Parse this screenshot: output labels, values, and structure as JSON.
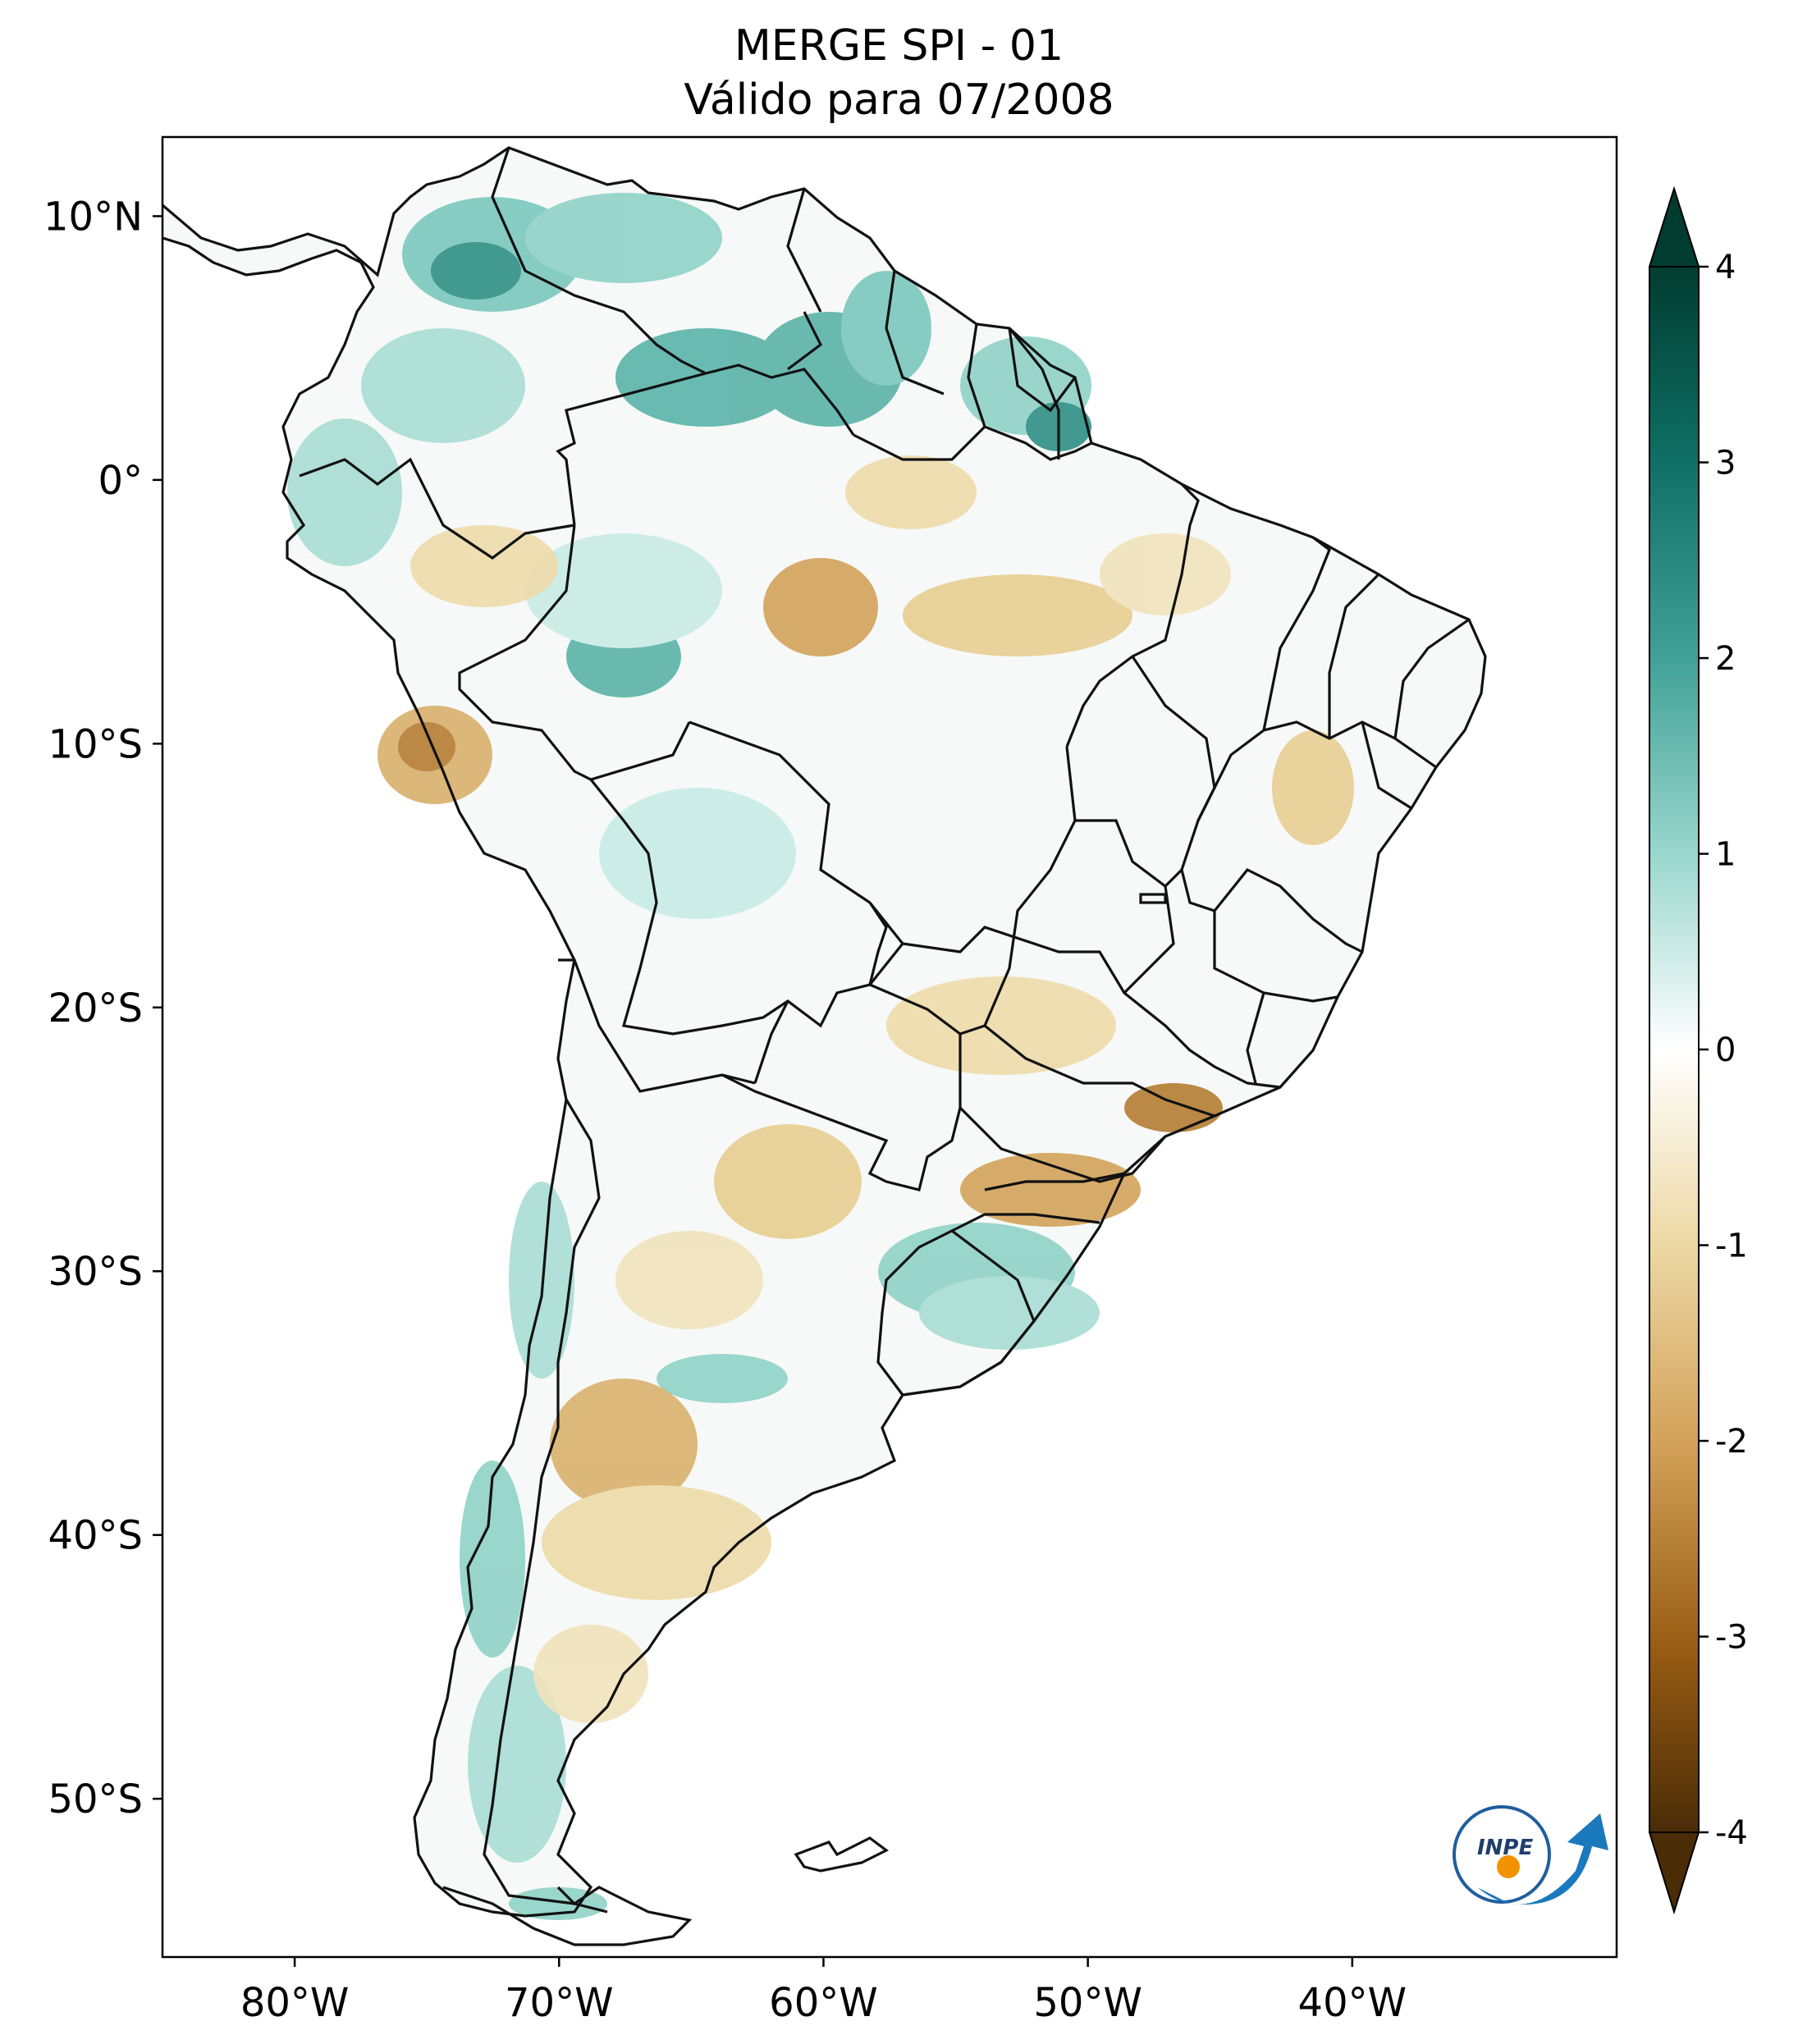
{
  "title": {
    "line1": "MERGE   SPI - 01",
    "line2": "Válido para 07/2008"
  },
  "map": {
    "region": "South America",
    "variable": "SPI - 01",
    "lat_labels": [
      "10°N",
      "0°",
      "10°S",
      "20°S",
      "30°S",
      "40°S",
      "50°S"
    ],
    "lon_labels": [
      "80°W",
      "70°W",
      "60°W",
      "50°W",
      "40°W"
    ],
    "lat_values": [
      10,
      0,
      -10,
      -20,
      -30,
      -40,
      -50
    ],
    "lon_values": [
      -80,
      -70,
      -60,
      -50,
      -40
    ],
    "lon_range": [
      -85,
      -30
    ],
    "lat_range": [
      -56,
      13
    ]
  },
  "colorbar": {
    "colormap": "BrBG",
    "ticks": [
      "4",
      "3",
      "2",
      "1",
      "0",
      "-1",
      "-2",
      "-3",
      "-4"
    ],
    "tick_values": [
      4,
      3,
      2,
      1,
      0,
      -1,
      -2,
      -3,
      -4
    ],
    "range": [
      -4,
      4
    ],
    "extend": "both",
    "colors": {
      "wet_extreme": "#013c30",
      "wet_strong": "#0f6e63",
      "wet_mid": "#41a196",
      "wet_light": "#9dd8cf",
      "neutral": "#ffffff",
      "dry_light": "#eddaa8",
      "dry_mid": "#d3a25a",
      "dry_strong": "#9a5d14",
      "dry_extreme": "#4a2c07"
    }
  },
  "logo": {
    "text": "INPE"
  }
}
